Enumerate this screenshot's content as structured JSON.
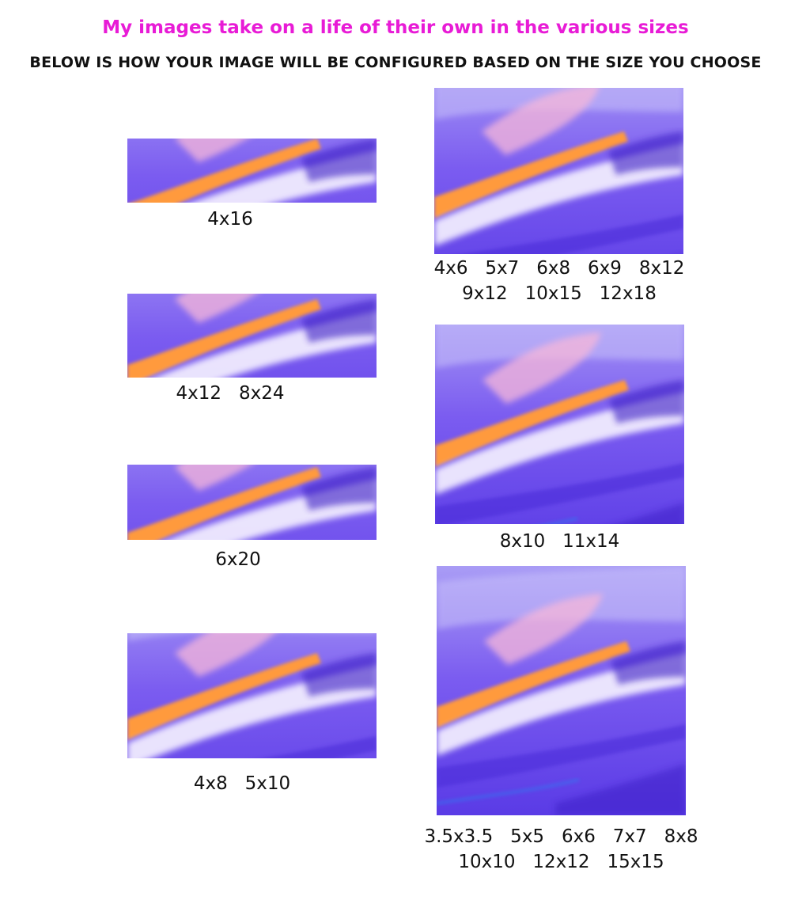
{
  "header": {
    "tagline": "My images take on a life of their own in the various sizes",
    "instruction": "BELOW IS HOW YOUR IMAGE WILL BE CONFIGURED BASED ON THE SIZE YOU CHOOSE"
  },
  "crops": [
    {
      "id": "4x16",
      "label": "4x16"
    },
    {
      "id": "4x12",
      "label": "4x12   8x24"
    },
    {
      "id": "6x20",
      "label": "6x20"
    },
    {
      "id": "4x8",
      "label": "4x8   5x10"
    },
    {
      "id": "4x6",
      "label_line1": "4x6   5x7   6x8   6x9   8x12",
      "label_line2": "9x12   10x15   12x18"
    },
    {
      "id": "8x10",
      "label": "8x10   11x14"
    },
    {
      "id": "square",
      "label_line1": "3.5x3.5   5x5   6x6   7x7   8x8",
      "label_line2": "10x10   12x12   15x15"
    }
  ],
  "colors": {
    "tagline": "#e81bd6",
    "instruction": "#111111",
    "violet": "#7b5cf0",
    "deep_violet": "#3a1fc4",
    "orange": "#ff9a3c",
    "white_streak": "#f4f0ff",
    "pink_haze": "#f7b7d9"
  }
}
